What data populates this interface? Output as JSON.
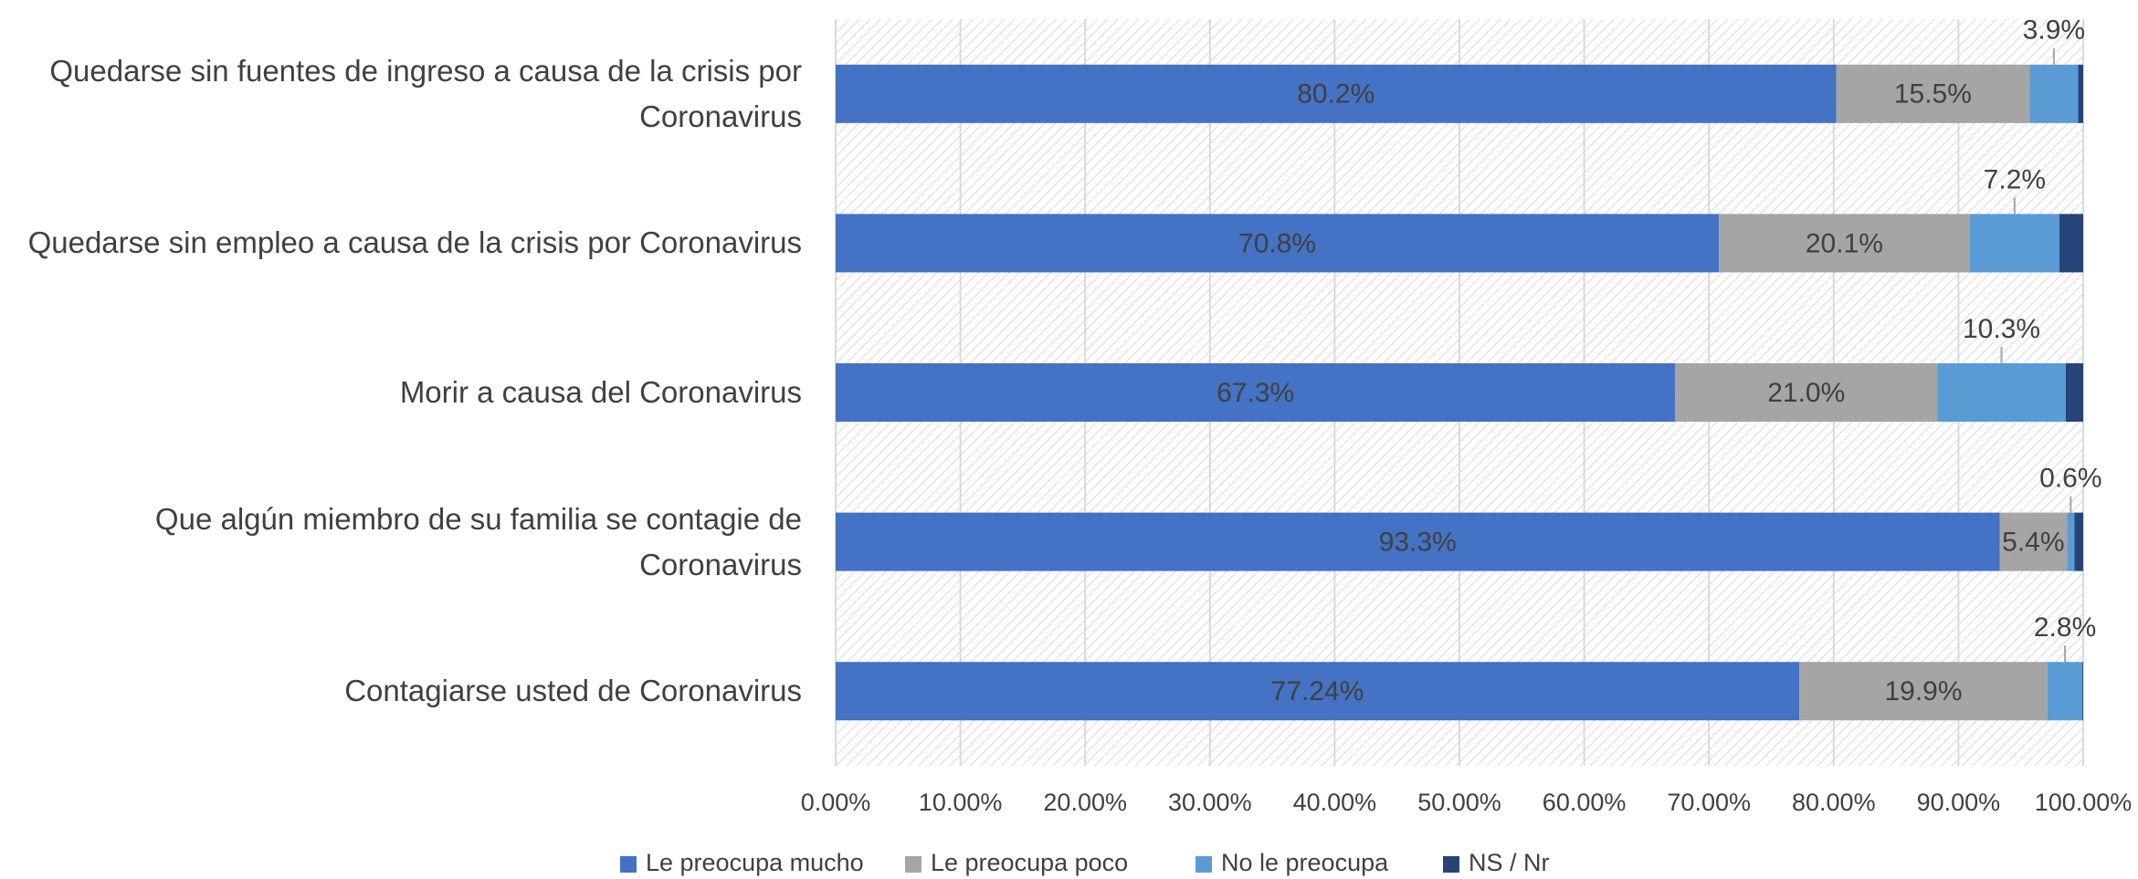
{
  "chart_data": {
    "type": "stacked-barh",
    "categories": [
      "Quedarse sin fuentes de ingreso a causa de la crisis por Coronavirus",
      "Quedarse sin empleo a causa de la crisis por Coronavirus",
      "Morir a causa del Coronavirus",
      "Que algún miembro de su familia se contagie de Coronavirus",
      "Contagiarse usted de Coronavirus"
    ],
    "series": [
      {
        "name": "Le preocupa mucho",
        "color": "#4472c4",
        "values": [
          80.2,
          70.8,
          67.3,
          93.3,
          77.24
        ],
        "value_labels": [
          "80.2%",
          "70.8%",
          "67.3%",
          "93.3%",
          "77.24%"
        ]
      },
      {
        "name": "Le preocupa poco",
        "color": "#a5a5a5",
        "values": [
          15.5,
          20.1,
          21.0,
          5.4,
          19.9
        ],
        "value_labels": [
          "15.5%",
          "20.1%",
          "21.0%",
          "5.4%",
          "19.9%"
        ]
      },
      {
        "name": "No le preocupa",
        "color": "#5b9bd5",
        "values": [
          3.9,
          7.2,
          10.3,
          0.6,
          2.8
        ],
        "value_labels": [
          "3.9%",
          "7.2%",
          "10.3%",
          "0.6%",
          "2.8%"
        ]
      },
      {
        "name": "NS / Nr",
        "color": "#264478",
        "values": [
          0.4,
          1.9,
          1.4,
          0.7,
          0.06
        ]
      }
    ],
    "xlim": [
      0,
      100
    ],
    "xticks": [
      {
        "value": 0,
        "label": "0.00%"
      },
      {
        "value": 10,
        "label": "10.00%"
      },
      {
        "value": 20,
        "label": "20.00%"
      },
      {
        "value": 30,
        "label": "30.00%"
      },
      {
        "value": 40,
        "label": "40.00%"
      },
      {
        "value": 50,
        "label": "50.00%"
      },
      {
        "value": 60,
        "label": "60.00%"
      },
      {
        "value": 70,
        "label": "70.00%"
      },
      {
        "value": 80,
        "label": "80.00%"
      },
      {
        "value": 90,
        "label": "90.00%"
      },
      {
        "value": 100,
        "label": "100.00%"
      }
    ],
    "grid": true,
    "legend": "bottom"
  }
}
